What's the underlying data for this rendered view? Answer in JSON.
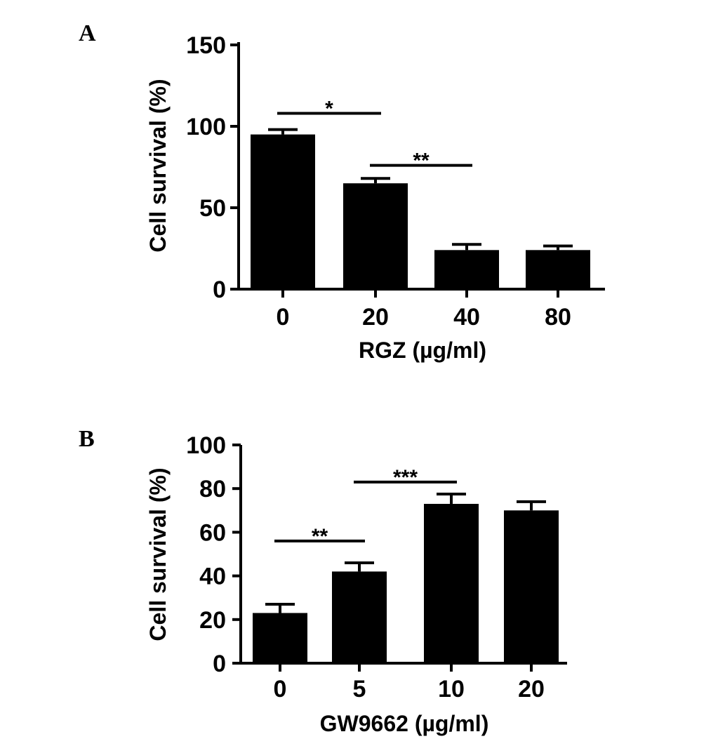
{
  "chart_data": [
    {
      "panel": "A",
      "type": "bar",
      "categories": [
        "0",
        "20",
        "40",
        "80"
      ],
      "values": [
        95,
        65,
        24,
        24
      ],
      "errors": [
        3,
        3,
        3.5,
        2.5
      ],
      "xlabel": "RGZ (µg/ml)",
      "ylabel": "Cell survival (%)",
      "ylim": [
        0,
        150
      ],
      "yticks": [
        "0",
        "50",
        "100",
        "150"
      ],
      "bar_color": "#000000",
      "significance": [
        {
          "from": 0,
          "to": 1,
          "label": "*",
          "y": 108
        },
        {
          "from": 1,
          "to": 2,
          "label": "**",
          "y": 76
        }
      ]
    },
    {
      "panel": "B",
      "type": "bar",
      "categories": [
        "0",
        "5",
        "10",
        "20"
      ],
      "values": [
        23,
        42,
        73,
        70
      ],
      "errors": [
        4,
        4,
        4.5,
        4
      ],
      "xlabel": "GW9662 (µg/ml)",
      "ylabel": "Cell survival (%)",
      "ylim": [
        0,
        100
      ],
      "yticks": [
        "0",
        "20",
        "40",
        "60",
        "80",
        "100"
      ],
      "bar_color": "#000000",
      "significance": [
        {
          "from": 0,
          "to": 1,
          "label": "**",
          "y": 56
        },
        {
          "from": 1,
          "to": 2,
          "label": "***",
          "y": 83
        }
      ]
    }
  ]
}
